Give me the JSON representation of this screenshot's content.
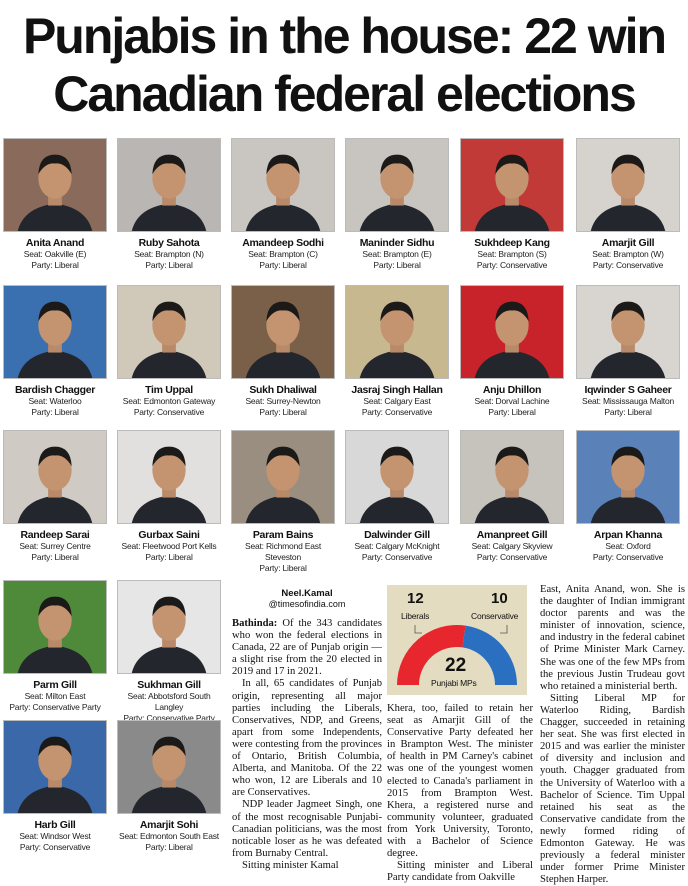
{
  "headline": {
    "line1": "Punjabis in the house: 22 win",
    "line2": "Canadian federal elections"
  },
  "people": [
    {
      "name": "Anita Anand",
      "seat": "Seat: Oakville (E)",
      "party": "Party: Liberal",
      "bg": "#8a6a5a"
    },
    {
      "name": "Ruby Sahota",
      "seat": "Seat: Brampton (N)",
      "party": "Party: Liberal",
      "bg": "#b9b6b4"
    },
    {
      "name": "Amandeep Sodhi",
      "seat": "Seat: Brampton (C)",
      "party": "Party: Liberal",
      "bg": "#c9c6c2"
    },
    {
      "name": "Maninder Sidhu",
      "seat": "Seat: Brampton (E)",
      "party": "Party: Liberal",
      "bg": "#c8c5c0"
    },
    {
      "name": "Sukhdeep Kang",
      "seat": "Seat: Brampton (S)",
      "party": "Party: Conservative",
      "bg": "#c23a38"
    },
    {
      "name": "Amarjit Gill",
      "seat": "Seat: Brampton (W)",
      "party": "Party: Conservative",
      "bg": "#d6d3ce"
    },
    {
      "name": "Bardish Chagger",
      "seat": "Seat: Waterloo",
      "party": "Party: Liberal",
      "bg": "#3a6fb0"
    },
    {
      "name": "Tim Uppal",
      "seat": "Seat: Edmonton Gateway",
      "party": "Party: Conservative",
      "bg": "#d0c8b8"
    },
    {
      "name": "Sukh Dhaliwal",
      "seat": "Seat: Surrey-Newton",
      "party": "Party: Liberal",
      "bg": "#7a6048"
    },
    {
      "name": "Jasraj Singh Hallan",
      "seat": "Seat: Calgary East",
      "party": "Party: Conservative",
      "bg": "#c8b890"
    },
    {
      "name": "Anju Dhillon",
      "seat": "Seat: Dorval Lachine",
      "party": "Party: Liberal",
      "bg": "#c8222a"
    },
    {
      "name": "Iqwinder S Gaheer",
      "seat": "Seat: Mississauga Malton",
      "party": "Party: Liberal",
      "bg": "#d8d4cf"
    },
    {
      "name": "Randeep Sarai",
      "seat": "Seat: Surrey Centre",
      "party": "Party: Liberal",
      "bg": "#cfcac4"
    },
    {
      "name": "Gurbax Saini",
      "seat": "Seat: Fleetwood Port Kells",
      "party": "Party: Liberal",
      "bg": "#e2e0de"
    },
    {
      "name": "Param Bains",
      "seat": "Seat: Richmond East Steveston",
      "party": "Party: Liberal",
      "bg": "#9a8e80"
    },
    {
      "name": "Dalwinder Gill",
      "seat": "Seat: Calgary McKnight",
      "party": "Party: Conservative",
      "bg": "#d8d8d8"
    },
    {
      "name": "Amanpreet Gill",
      "seat": "Seat: Calgary Skyview",
      "party": "Party: Conservative",
      "bg": "#c6c2bc"
    },
    {
      "name": "Arpan Khanna",
      "seat": "Seat: Oxford",
      "party": "Party: Conservative",
      "bg": "#5a82b8"
    },
    {
      "name": "Parm Gill",
      "seat": "Seat: Milton East",
      "party": "Party: Conservative Party",
      "bg": "#4f8a3a"
    },
    {
      "name": "Sukhman Gill",
      "seat": "Seat: Abbotsford South Langley",
      "party": "Party: Conservative Party",
      "bg": "#e6e6e6"
    },
    {
      "name": "Harb Gill",
      "seat": "Seat: Windsor West",
      "party": "Party: Conservative",
      "bg": "#3a68a8"
    },
    {
      "name": "Amarjit Sohi",
      "seat": "Seat: Edmonton South East",
      "party": "Party: Liberal",
      "bg": "#8a8a8a"
    }
  ],
  "byline": {
    "author": "Neel.Kamal",
    "email": "@timesofindia.com"
  },
  "chart_data": {
    "type": "pie",
    "title": "Punjabi MPs",
    "total": 22,
    "categories": [
      "Liberals",
      "Conservative"
    ],
    "values": [
      12,
      10
    ],
    "colors": [
      "#e8262e",
      "#2a6fc0"
    ]
  },
  "article": {
    "dateline": "Bathinda:",
    "col1": [
      "Of the 343 candidates who won the federal elections in Canada, 22 are of Punjab origin — a slight rise from the 20 elected in 2019 and 17 in 2021.",
      "In all, 65 candidates of Punjab origin, representing all major parties including the Liberals, Conservatives, NDP, and Greens, apart from some Independents, were contesting from the provinces of Ontario, British Columbia, Alberta, and Manitoba. Of the 22 who won, 12 are Liberals and 10 are Conservatives.",
      "NDP leader Jagmeet Singh, one of the most recognisable Punjabi-Canadian politicians, was the most noticable loser as he was defeated from Burnaby Central.",
      "Sitting minister Kamal"
    ],
    "col2": [
      "Khera, too, failed to retain her seat as Amarjit Gill of the Conservative Party defeated her in Brampton West. The minister of health in PM Carney's cabinet was one of the youngest women elected to Canada's parliament in 2015 from Brampton West. Khera, a registered nurse and community volunteer, graduated from York University, Toronto, with a Bachelor of Science degree.",
      "Sitting minister and Liberal Party candidate from Oakville"
    ],
    "col3": [
      "East, Anita Anand, won. She is the daughter of Indian immigrant doctor parents and was the minister of innovation, science, and industry in the federal cabinet of Prime Minister Mark Carney. She was one of the few MPs from the previous Justin Trudeau govt who retained a ministerial berth.",
      "Sitting Liberal MP for Waterloo Riding, Bardish Chagger, succeeded in retaining her seat. She was first elected in 2015 and was earlier the minister of diversity and inclusion and youth. Chagger graduated from the University of Waterloo with a Bachelor of Science. Tim Uppal retained his seat as the Conservative candidate from the newly formed riding of Edmonton Gateway. He was previously a federal minister under former Prime Minister Stephen Harper."
    ]
  }
}
